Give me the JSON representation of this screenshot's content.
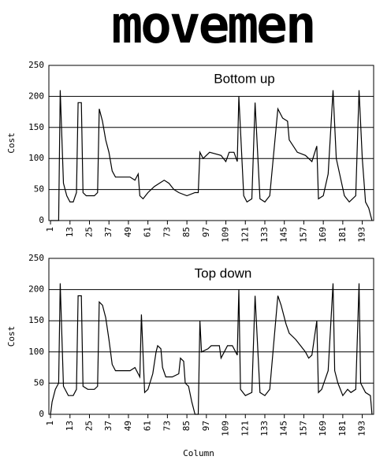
{
  "heading": "movemen",
  "chart_data": [
    {
      "type": "line",
      "title": "Bottom up",
      "y_label": "Cost",
      "color": "#000000",
      "grid": true,
      "xlim": [
        0,
        200
      ],
      "ylim": [
        0,
        250
      ],
      "xticks": [
        1,
        13,
        25,
        37,
        49,
        61,
        73,
        85,
        97,
        109,
        121,
        133,
        145,
        157,
        169,
        181,
        193
      ],
      "yticks": [
        0,
        50,
        100,
        150,
        200,
        250
      ],
      "x": [
        1,
        6,
        7,
        9,
        11,
        13,
        15,
        17,
        18,
        20,
        21,
        23,
        28,
        30,
        31,
        33,
        35,
        37,
        39,
        41,
        50,
        53,
        55,
        56,
        58,
        61,
        63,
        65,
        68,
        71,
        74,
        77,
        80,
        85,
        90,
        92,
        93,
        95,
        99,
        106,
        109,
        111,
        114,
        116,
        117,
        120,
        122,
        125,
        127,
        130,
        133,
        136,
        141,
        144,
        147,
        148,
        153,
        158,
        162,
        165,
        166,
        169,
        172,
        175,
        177,
        182,
        185,
        189,
        191,
        193,
        195,
        197,
        199
      ],
      "values": [
        0,
        0,
        210,
        60,
        40,
        30,
        30,
        45,
        190,
        190,
        45,
        40,
        40,
        45,
        180,
        160,
        130,
        110,
        80,
        70,
        70,
        65,
        75,
        40,
        35,
        45,
        50,
        55,
        60,
        65,
        60,
        50,
        45,
        40,
        45,
        45,
        110,
        100,
        110,
        105,
        95,
        110,
        110,
        95,
        200,
        40,
        30,
        35,
        190,
        35,
        30,
        40,
        180,
        165,
        160,
        130,
        110,
        105,
        95,
        120,
        35,
        40,
        75,
        210,
        100,
        40,
        30,
        40,
        210,
        100,
        30,
        20,
        0
      ]
    },
    {
      "type": "line",
      "title": "Top down",
      "y_label": "Cost",
      "x_label": "Column",
      "color": "#000000",
      "grid": true,
      "xlim": [
        0,
        200
      ],
      "ylim": [
        0,
        250
      ],
      "xticks": [
        1,
        13,
        25,
        37,
        49,
        61,
        73,
        85,
        97,
        109,
        121,
        133,
        145,
        157,
        169,
        181,
        193
      ],
      "yticks": [
        0,
        50,
        100,
        150,
        200,
        250
      ],
      "x": [
        1,
        2,
        4,
        6,
        7,
        9,
        12,
        15,
        17,
        18,
        20,
        21,
        24,
        28,
        30,
        31,
        33,
        35,
        37,
        39,
        41,
        50,
        53,
        56,
        57,
        59,
        61,
        64,
        66,
        67,
        69,
        70,
        72,
        76,
        80,
        81,
        83,
        84,
        86,
        88,
        90,
        92,
        93,
        94,
        98,
        100,
        105,
        106,
        108,
        110,
        113,
        116,
        117,
        118,
        121,
        125,
        127,
        130,
        133,
        136,
        141,
        143,
        146,
        148,
        152,
        155,
        158,
        160,
        162,
        165,
        166,
        168,
        172,
        175,
        176,
        178,
        181,
        184,
        186,
        189,
        191,
        192,
        195,
        198,
        199
      ],
      "values": [
        0,
        20,
        40,
        50,
        210,
        45,
        30,
        30,
        40,
        190,
        190,
        45,
        40,
        40,
        45,
        180,
        175,
        155,
        120,
        80,
        70,
        70,
        75,
        60,
        160,
        35,
        40,
        65,
        100,
        110,
        105,
        75,
        60,
        60,
        65,
        90,
        85,
        50,
        45,
        20,
        0,
        0,
        150,
        100,
        105,
        110,
        110,
        90,
        100,
        110,
        110,
        95,
        200,
        40,
        30,
        35,
        190,
        35,
        30,
        40,
        190,
        175,
        145,
        130,
        120,
        110,
        100,
        90,
        95,
        150,
        35,
        40,
        70,
        210,
        70,
        50,
        30,
        40,
        35,
        40,
        210,
        50,
        35,
        30,
        0
      ]
    }
  ]
}
